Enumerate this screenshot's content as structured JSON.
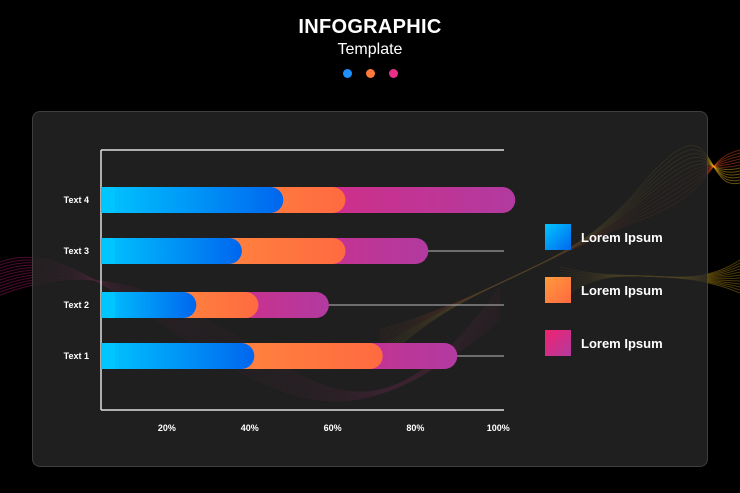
{
  "header": {
    "title": "INFOGRAPHIC",
    "subtitle": "Template",
    "dots": [
      "#1e90ff",
      "#ff7a3c",
      "#e8308a"
    ]
  },
  "colors": {
    "blue": [
      "#00c6ff",
      "#0066ee"
    ],
    "orange": [
      "#ff9a3c",
      "#ff6a40"
    ],
    "pink": [
      "#f0226e",
      "#b23aa0"
    ],
    "wave_pink": "#e0208a",
    "wave_orange": "#ff5a1e",
    "wave_yellow": "#ffc81e"
  },
  "chart_data": {
    "type": "bar",
    "orientation": "horizontal",
    "stacked": true,
    "categories": [
      "Text 4",
      "Text 3",
      "Text 2",
      "Text 1"
    ],
    "x_ticks": [
      "20%",
      "40%",
      "60%",
      "80%",
      "100%"
    ],
    "xlim": [
      0,
      105
    ],
    "series": [
      {
        "name": "Lorem Ipsum",
        "color": "blue",
        "values": [
          44,
          34,
          23,
          37
        ]
      },
      {
        "name": "Lorem Ipsum",
        "color": "orange",
        "values": [
          15,
          25,
          15,
          31
        ]
      },
      {
        "name": "Lorem Ipsum",
        "color": "pink",
        "values": [
          41,
          20,
          17,
          18
        ]
      }
    ],
    "legend_position": "right",
    "grid": false
  }
}
